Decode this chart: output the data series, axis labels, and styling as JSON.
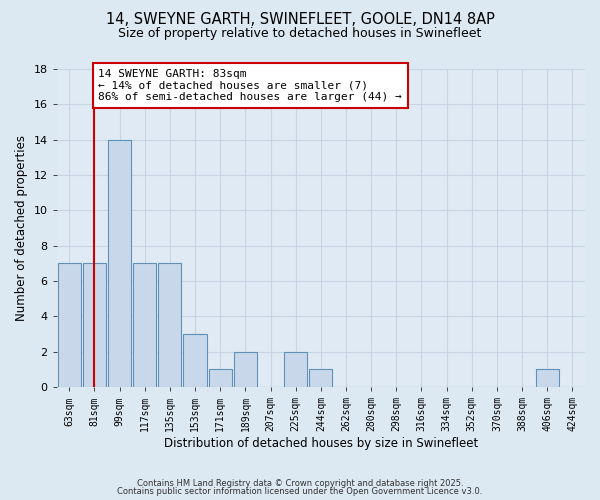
{
  "title1": "14, SWEYNE GARTH, SWINEFLEET, GOOLE, DN14 8AP",
  "title2": "Size of property relative to detached houses in Swinefleet",
  "xlabel": "Distribution of detached houses by size in Swinefleet",
  "ylabel": "Number of detached properties",
  "bar_color": "#c8d8ea",
  "bar_edge_color": "#6090b8",
  "background_color": "#e0eaf4",
  "bins": [
    "63sqm",
    "81sqm",
    "99sqm",
    "117sqm",
    "135sqm",
    "153sqm",
    "171sqm",
    "189sqm",
    "207sqm",
    "225sqm",
    "244sqm",
    "262sqm",
    "280sqm",
    "298sqm",
    "316sqm",
    "334sqm",
    "352sqm",
    "370sqm",
    "388sqm",
    "406sqm",
    "424sqm"
  ],
  "counts": [
    7,
    7,
    14,
    7,
    7,
    3,
    1,
    2,
    0,
    2,
    1,
    0,
    0,
    0,
    0,
    0,
    0,
    0,
    0,
    1,
    0
  ],
  "vline_x": 1,
  "vline_color": "#cc0000",
  "annotation_text": "14 SWEYNE GARTH: 83sqm\n← 14% of detached houses are smaller (7)\n86% of semi-detached houses are larger (44) →",
  "annotation_box_color": "#ffffff",
  "annotation_box_edge": "#cc0000",
  "ylim": [
    0,
    18
  ],
  "yticks": [
    0,
    2,
    4,
    6,
    8,
    10,
    12,
    14,
    16,
    18
  ],
  "footer1": "Contains HM Land Registry data © Crown copyright and database right 2025.",
  "footer2": "Contains public sector information licensed under the Open Government Licence v3.0.",
  "grid_color": "#c8d4e4",
  "fig_bg": "#dce8f2"
}
